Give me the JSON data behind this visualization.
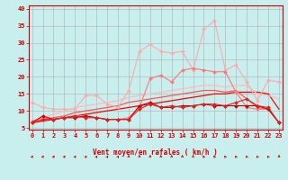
{
  "background_color": "#c8eeed",
  "grid_color": "#b0b0b0",
  "xlabel": "Vent moyen/en rafales ( km/h )",
  "x_ticks": [
    0,
    1,
    2,
    3,
    4,
    5,
    6,
    7,
    8,
    9,
    10,
    11,
    12,
    13,
    14,
    15,
    16,
    17,
    18,
    19,
    20,
    21,
    22,
    23
  ],
  "ylim": [
    4.5,
    41
  ],
  "xlim": [
    -0.3,
    23.3
  ],
  "yticks": [
    5,
    10,
    15,
    20,
    25,
    30,
    35,
    40
  ],
  "series": [
    {
      "color": "#ffaaaa",
      "marker": "D",
      "markersize": 2.0,
      "linewidth": 0.8,
      "x": [
        0,
        1,
        2,
        3,
        4,
        5,
        6,
        7,
        8,
        9,
        10,
        11,
        12,
        13,
        14,
        15,
        16,
        17,
        18,
        19,
        20,
        21,
        22,
        23
      ],
      "y": [
        12.5,
        11.0,
        10.5,
        10.5,
        10.5,
        14.5,
        14.5,
        12.0,
        11.0,
        16.0,
        27.5,
        29.5,
        27.5,
        27.0,
        27.5,
        22.0,
        34.0,
        36.5,
        22.0,
        23.5,
        18.5,
        13.0,
        19.0,
        18.5
      ]
    },
    {
      "color": "#ff7777",
      "marker": "D",
      "markersize": 2.0,
      "linewidth": 0.8,
      "x": [
        0,
        1,
        2,
        3,
        4,
        5,
        6,
        7,
        8,
        9,
        10,
        11,
        12,
        13,
        14,
        15,
        16,
        17,
        18,
        19,
        20,
        21,
        22,
        23
      ],
      "y": [
        7.0,
        8.0,
        7.5,
        8.0,
        8.5,
        8.5,
        8.0,
        7.5,
        7.5,
        8.0,
        11.0,
        19.5,
        20.5,
        18.5,
        22.0,
        22.5,
        22.0,
        21.5,
        21.5,
        15.5,
        11.0,
        10.5,
        10.5,
        6.5
      ]
    },
    {
      "color": "#cc0000",
      "marker": "D",
      "markersize": 2.0,
      "linewidth": 0.8,
      "x": [
        0,
        1,
        2,
        3,
        4,
        5,
        6,
        7,
        8,
        9,
        10,
        11,
        12,
        13,
        14,
        15,
        16,
        17,
        18,
        19,
        20,
        21,
        22,
        23
      ],
      "y": [
        6.5,
        8.5,
        7.5,
        8.0,
        8.0,
        8.5,
        8.0,
        7.5,
        7.5,
        7.5,
        11.5,
        12.5,
        11.0,
        11.0,
        11.5,
        11.5,
        12.0,
        11.5,
        11.5,
        11.5,
        11.5,
        11.5,
        10.5,
        6.5
      ]
    },
    {
      "color": "#dd2222",
      "marker": "D",
      "markersize": 2.0,
      "linewidth": 0.8,
      "x": [
        0,
        1,
        2,
        3,
        4,
        5,
        6,
        7,
        8,
        9,
        10,
        11,
        12,
        13,
        14,
        15,
        16,
        17,
        18,
        19,
        20,
        21,
        22,
        23
      ],
      "y": [
        6.5,
        7.5,
        7.5,
        8.0,
        8.5,
        8.0,
        8.0,
        7.5,
        7.5,
        7.5,
        10.5,
        12.0,
        11.0,
        11.5,
        11.0,
        11.5,
        12.0,
        12.0,
        11.5,
        12.5,
        13.5,
        11.5,
        11.0,
        6.5
      ]
    },
    {
      "color": "#ff0000",
      "marker": null,
      "markersize": 0,
      "linewidth": 0.9,
      "x": [
        0,
        1,
        2,
        3,
        4,
        5,
        6,
        7,
        8,
        9,
        10,
        11,
        12,
        13,
        14,
        15,
        16,
        17,
        18,
        19,
        20,
        21,
        22,
        23
      ],
      "y": [
        6.5,
        7.0,
        7.5,
        8.0,
        8.5,
        9.0,
        9.5,
        10.0,
        10.5,
        11.0,
        11.5,
        12.0,
        12.5,
        13.0,
        13.5,
        14.0,
        14.5,
        15.0,
        15.0,
        15.5,
        15.5,
        15.5,
        15.0,
        10.5
      ]
    },
    {
      "color": "#ff5555",
      "marker": null,
      "markersize": 0,
      "linewidth": 0.9,
      "x": [
        0,
        1,
        2,
        3,
        4,
        5,
        6,
        7,
        8,
        9,
        10,
        11,
        12,
        13,
        14,
        15,
        16,
        17,
        18,
        19,
        20,
        21,
        22,
        23
      ],
      "y": [
        6.5,
        7.5,
        8.0,
        8.5,
        9.5,
        10.0,
        10.5,
        11.0,
        11.5,
        12.5,
        13.0,
        13.5,
        14.0,
        14.5,
        15.0,
        15.5,
        16.0,
        16.0,
        15.5,
        16.0,
        13.5,
        11.0,
        10.5,
        6.5
      ]
    },
    {
      "color": "#ffbbbb",
      "marker": null,
      "markersize": 0,
      "linewidth": 0.9,
      "x": [
        0,
        1,
        2,
        3,
        4,
        5,
        6,
        7,
        8,
        9,
        10,
        11,
        12,
        13,
        14,
        15,
        16,
        17,
        18,
        19,
        20,
        21,
        22,
        23
      ],
      "y": [
        6.5,
        8.0,
        9.0,
        10.0,
        11.0,
        11.5,
        12.0,
        12.5,
        13.0,
        14.0,
        14.5,
        15.0,
        15.5,
        16.0,
        16.5,
        17.0,
        17.5,
        17.5,
        17.0,
        17.5,
        17.5,
        15.0,
        14.5,
        13.5
      ]
    }
  ],
  "arrow_color": "#cc0000",
  "arrow_angles": [
    45,
    45,
    45,
    45,
    45,
    45,
    45,
    45,
    45,
    0,
    0,
    0,
    0,
    0,
    0,
    0,
    315,
    315,
    315,
    315,
    315,
    315,
    315,
    0
  ],
  "axis_label_fontsize": 5.5,
  "tick_fontsize": 5.0
}
